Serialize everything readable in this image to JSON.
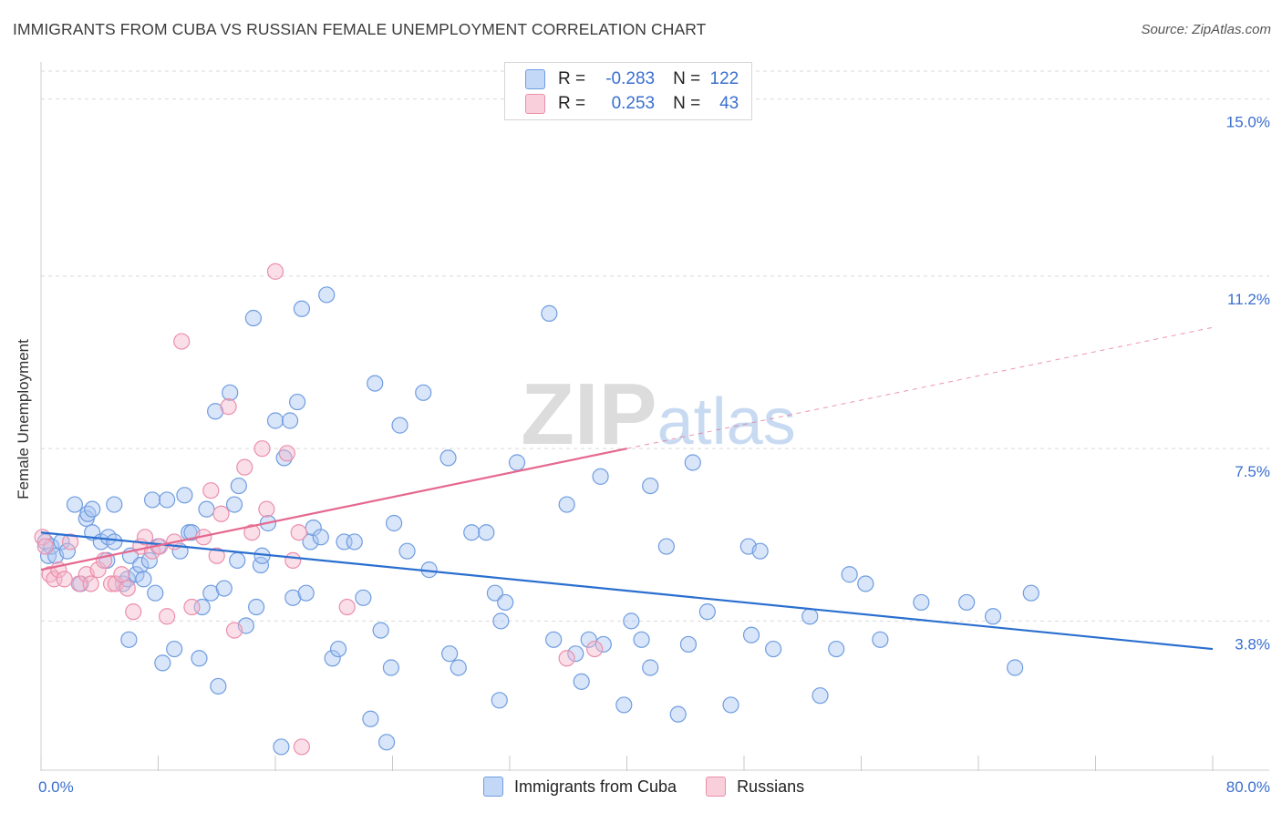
{
  "title": "IMMIGRANTS FROM CUBA VS RUSSIAN FEMALE UNEMPLOYMENT CORRELATION CHART",
  "source_label": "Source: ZipAtlas.com",
  "watermark": "ZIPatlas",
  "legend": {
    "rows": [
      {
        "r_label": "R =",
        "r_value": "-0.283",
        "n_label": "N =",
        "n_value": "122"
      },
      {
        "r_label": "R =",
        "r_value": "0.253",
        "n_label": "N =",
        "n_value": "43"
      }
    ]
  },
  "bottom_legend": {
    "series_1": "Immigrants from Cuba",
    "series_2": "Russians"
  },
  "colors": {
    "blue_fill": "#aac6f1",
    "blue_stroke": "#6f9de0",
    "blue_line": "#2a6fd0",
    "pink_fill": "#f5b8cb",
    "pink_stroke": "#ec8fab",
    "pink_line": "#e5688f",
    "tick_label": "#3a6fcf",
    "grid": "#d9d9d9"
  },
  "chart_data": {
    "type": "scatter",
    "title": "IMMIGRANTS FROM CUBA VS RUSSIAN FEMALE UNEMPLOYMENT CORRELATION CHART",
    "xlabel": "",
    "ylabel": "Female Unemployment",
    "xlim": [
      0,
      80
    ],
    "ylim": [
      0.6,
      15.6
    ],
    "x_tick_labels": [
      "0.0%",
      "80.0%"
    ],
    "y_ticks": [
      3.8,
      7.5,
      11.2,
      15.0
    ],
    "y_tick_labels": [
      "3.8%",
      "7.5%",
      "11.2%",
      "15.0%"
    ],
    "series": [
      {
        "name": "Immigrants from Cuba",
        "r": -0.283,
        "n": 122,
        "trend": {
          "x0": 0,
          "y0": 5.7,
          "x1": 80,
          "y1": 3.2
        },
        "points": [
          [
            0.3,
            5.5
          ],
          [
            0.5,
            5.2
          ],
          [
            0.7,
            5.4
          ],
          [
            1.0,
            5.2
          ],
          [
            1.4,
            5.5
          ],
          [
            1.8,
            5.3
          ],
          [
            2.3,
            6.3
          ],
          [
            2.7,
            4.6
          ],
          [
            3.1,
            6.0
          ],
          [
            3.2,
            6.1
          ],
          [
            3.5,
            6.2
          ],
          [
            3.5,
            5.7
          ],
          [
            4.1,
            5.5
          ],
          [
            4.5,
            5.1
          ],
          [
            4.6,
            5.6
          ],
          [
            5.0,
            6.3
          ],
          [
            5.0,
            5.5
          ],
          [
            5.6,
            4.6
          ],
          [
            5.9,
            4.7
          ],
          [
            6.0,
            3.4
          ],
          [
            6.1,
            5.2
          ],
          [
            6.5,
            4.8
          ],
          [
            6.8,
            5.0
          ],
          [
            7.0,
            4.7
          ],
          [
            7.4,
            5.1
          ],
          [
            7.6,
            6.4
          ],
          [
            7.8,
            4.4
          ],
          [
            8.0,
            5.4
          ],
          [
            8.3,
            2.9
          ],
          [
            8.6,
            6.4
          ],
          [
            9.1,
            3.2
          ],
          [
            9.5,
            5.3
          ],
          [
            9.8,
            6.5
          ],
          [
            10.1,
            5.7
          ],
          [
            10.3,
            5.7
          ],
          [
            10.8,
            3.0
          ],
          [
            11.0,
            4.1
          ],
          [
            11.3,
            6.2
          ],
          [
            11.6,
            4.4
          ],
          [
            11.9,
            8.3
          ],
          [
            12.1,
            2.4
          ],
          [
            12.5,
            4.5
          ],
          [
            12.9,
            8.7
          ],
          [
            13.2,
            6.3
          ],
          [
            13.4,
            5.1
          ],
          [
            13.5,
            6.7
          ],
          [
            14.0,
            3.7
          ],
          [
            14.5,
            10.3
          ],
          [
            14.7,
            4.1
          ],
          [
            15.0,
            5.0
          ],
          [
            15.1,
            5.2
          ],
          [
            15.5,
            5.9
          ],
          [
            16.0,
            8.1
          ],
          [
            16.4,
            1.1
          ],
          [
            16.6,
            7.3
          ],
          [
            17.0,
            8.1
          ],
          [
            17.2,
            4.3
          ],
          [
            17.5,
            8.5
          ],
          [
            17.8,
            10.5
          ],
          [
            18.1,
            4.4
          ],
          [
            18.4,
            5.5
          ],
          [
            18.6,
            5.8
          ],
          [
            19.1,
            5.6
          ],
          [
            19.5,
            10.8
          ],
          [
            19.9,
            3.0
          ],
          [
            20.3,
            3.2
          ],
          [
            20.7,
            5.5
          ],
          [
            21.4,
            5.5
          ],
          [
            22.0,
            4.3
          ],
          [
            22.5,
            1.7
          ],
          [
            22.8,
            8.9
          ],
          [
            23.2,
            3.6
          ],
          [
            23.6,
            1.2
          ],
          [
            23.9,
            2.8
          ],
          [
            24.1,
            5.9
          ],
          [
            24.5,
            8.0
          ],
          [
            25.0,
            5.3
          ],
          [
            26.1,
            8.7
          ],
          [
            26.5,
            4.9
          ],
          [
            27.8,
            7.3
          ],
          [
            27.9,
            3.1
          ],
          [
            28.5,
            2.8
          ],
          [
            29.4,
            5.7
          ],
          [
            30.4,
            5.7
          ],
          [
            31.0,
            4.4
          ],
          [
            31.3,
            2.1
          ],
          [
            31.4,
            3.8
          ],
          [
            31.7,
            4.2
          ],
          [
            32.5,
            7.2
          ],
          [
            34.7,
            10.4
          ],
          [
            35.0,
            3.4
          ],
          [
            35.9,
            6.3
          ],
          [
            36.5,
            3.1
          ],
          [
            36.9,
            2.5
          ],
          [
            37.4,
            3.4
          ],
          [
            38.2,
            6.9
          ],
          [
            38.4,
            3.3
          ],
          [
            39.8,
            2.0
          ],
          [
            40.3,
            3.8
          ],
          [
            41.0,
            3.4
          ],
          [
            41.6,
            2.8
          ],
          [
            41.6,
            6.7
          ],
          [
            42.7,
            5.4
          ],
          [
            43.5,
            1.8
          ],
          [
            44.2,
            3.3
          ],
          [
            44.5,
            7.2
          ],
          [
            45.5,
            4.0
          ],
          [
            47.1,
            2.0
          ],
          [
            48.3,
            5.4
          ],
          [
            48.5,
            3.5
          ],
          [
            49.1,
            5.3
          ],
          [
            50.0,
            3.2
          ],
          [
            52.5,
            3.9
          ],
          [
            53.2,
            2.2
          ],
          [
            54.3,
            3.2
          ],
          [
            55.2,
            4.8
          ],
          [
            56.3,
            4.6
          ],
          [
            57.3,
            3.4
          ],
          [
            60.1,
            4.2
          ],
          [
            63.2,
            4.2
          ],
          [
            65.0,
            3.9
          ],
          [
            66.5,
            2.8
          ],
          [
            67.6,
            4.4
          ]
        ]
      },
      {
        "name": "Russians",
        "r": 0.253,
        "n": 43,
        "trend": {
          "x0": 0,
          "y0": 4.9,
          "x1": 40,
          "y1": 7.5,
          "x_ext": 80,
          "y_ext": 10.1
        },
        "points": [
          [
            0.1,
            5.6
          ],
          [
            0.3,
            5.4
          ],
          [
            0.6,
            4.8
          ],
          [
            0.9,
            4.7
          ],
          [
            1.2,
            4.9
          ],
          [
            1.6,
            4.7
          ],
          [
            2.0,
            5.5
          ],
          [
            2.6,
            4.6
          ],
          [
            3.1,
            4.8
          ],
          [
            3.4,
            4.6
          ],
          [
            3.9,
            4.9
          ],
          [
            4.3,
            5.1
          ],
          [
            4.8,
            4.6
          ],
          [
            5.1,
            4.6
          ],
          [
            5.5,
            4.8
          ],
          [
            5.9,
            4.5
          ],
          [
            6.3,
            4.0
          ],
          [
            6.8,
            5.4
          ],
          [
            7.1,
            5.6
          ],
          [
            7.6,
            5.3
          ],
          [
            8.1,
            5.4
          ],
          [
            8.6,
            3.9
          ],
          [
            9.1,
            5.5
          ],
          [
            9.6,
            9.8
          ],
          [
            10.3,
            4.1
          ],
          [
            11.1,
            5.6
          ],
          [
            11.6,
            6.6
          ],
          [
            12.0,
            5.2
          ],
          [
            12.3,
            6.1
          ],
          [
            12.8,
            8.4
          ],
          [
            13.2,
            3.6
          ],
          [
            13.9,
            7.1
          ],
          [
            14.4,
            5.7
          ],
          [
            15.1,
            7.5
          ],
          [
            15.4,
            6.2
          ],
          [
            16.0,
            11.3
          ],
          [
            16.8,
            7.4
          ],
          [
            17.2,
            5.1
          ],
          [
            17.6,
            5.7
          ],
          [
            17.8,
            1.1
          ],
          [
            20.9,
            4.1
          ],
          [
            35.9,
            3.0
          ],
          [
            37.8,
            3.2
          ]
        ]
      }
    ]
  }
}
